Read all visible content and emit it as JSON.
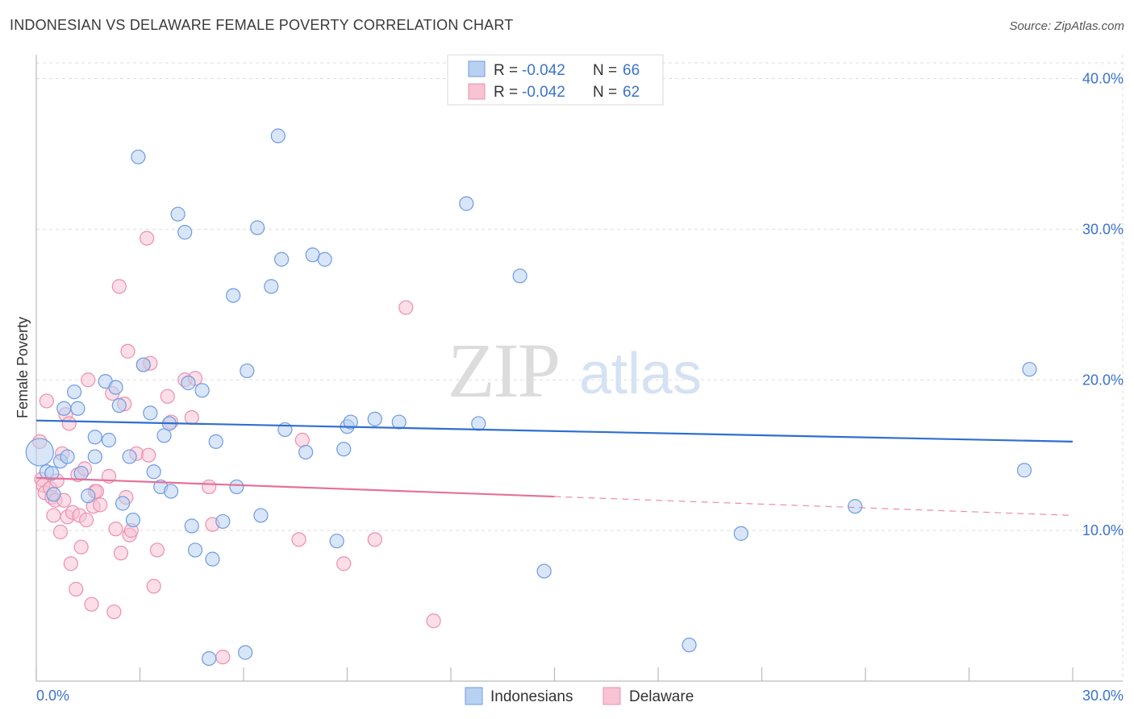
{
  "title": "INDONESIAN VS DELAWARE FEMALE POVERTY CORRELATION CHART",
  "source": "Source: ZipAtlas.com",
  "watermark": {
    "part1": "ZIP",
    "part2": "atlas"
  },
  "colors": {
    "blue_fill": "#b8d1f3",
    "blue_stroke": "#6f9be0",
    "blue_line": "#2e6fcf",
    "pink_fill": "#f8c3d3",
    "pink_stroke": "#ec8fae",
    "pink_line": "#e5709a",
    "grid": "#dedede",
    "axis_label": "#3b73c8"
  },
  "legend": {
    "rows": [
      {
        "r_label": "R =",
        "r_value": "-0.042",
        "n_label": "N =",
        "n_value": "66"
      },
      {
        "r_label": "R =",
        "r_value": "-0.042",
        "n_label": "N =",
        "n_value": "62"
      }
    ]
  },
  "chart_data": {
    "type": "scatter",
    "title": "INDONESIAN VS DELAWARE FEMALE POVERTY CORRELATION CHART",
    "xlabel": "",
    "ylabel": "Female Poverty",
    "xlim": [
      0,
      30
    ],
    "ylim": [
      0,
      40
    ],
    "x_tick_labels": [
      "0.0%",
      "30.0%"
    ],
    "y_tick_labels": [
      "10.0%",
      "20.0%",
      "30.0%",
      "40.0%"
    ],
    "y_ticks": [
      10,
      20,
      30,
      40
    ],
    "grid": true,
    "legend_position": "top-center",
    "series": [
      {
        "name": "Indonesians",
        "color": "#6f9be0",
        "r": -0.042,
        "n": 66,
        "trend": {
          "x": [
            0,
            30
          ],
          "y": [
            17.3,
            15.9
          ],
          "dashed_from": null
        },
        "points": [
          [
            0.1,
            15.2
          ],
          [
            0.3,
            13.9
          ],
          [
            0.45,
            13.8
          ],
          [
            0.5,
            12.4
          ],
          [
            0.7,
            14.6
          ],
          [
            0.9,
            14.9
          ],
          [
            0.8,
            18.1
          ],
          [
            1.2,
            18.1
          ],
          [
            1.3,
            13.8
          ],
          [
            1.1,
            19.2
          ],
          [
            1.5,
            12.3
          ],
          [
            1.7,
            14.9
          ],
          [
            1.7,
            16.2
          ],
          [
            2.0,
            19.9
          ],
          [
            2.1,
            16.0
          ],
          [
            2.3,
            19.5
          ],
          [
            2.4,
            18.3
          ],
          [
            2.5,
            11.8
          ],
          [
            2.7,
            14.9
          ],
          [
            2.8,
            10.7
          ],
          [
            2.95,
            34.8
          ],
          [
            3.1,
            21.0
          ],
          [
            3.3,
            17.8
          ],
          [
            3.4,
            13.9
          ],
          [
            3.6,
            12.9
          ],
          [
            3.7,
            16.3
          ],
          [
            3.85,
            17.1
          ],
          [
            3.9,
            12.6
          ],
          [
            4.1,
            31.0
          ],
          [
            4.3,
            29.8
          ],
          [
            4.4,
            19.8
          ],
          [
            4.5,
            10.3
          ],
          [
            4.6,
            8.7
          ],
          [
            4.8,
            19.3
          ],
          [
            5.0,
            1.5
          ],
          [
            5.1,
            8.1
          ],
          [
            5.2,
            15.9
          ],
          [
            5.4,
            10.6
          ],
          [
            5.7,
            25.6
          ],
          [
            5.8,
            12.9
          ],
          [
            6.05,
            1.9
          ],
          [
            6.1,
            20.6
          ],
          [
            6.4,
            30.1
          ],
          [
            6.5,
            11.0
          ],
          [
            6.8,
            26.2
          ],
          [
            7.0,
            36.2
          ],
          [
            7.1,
            28.0
          ],
          [
            7.2,
            16.7
          ],
          [
            7.8,
            15.2
          ],
          [
            8.0,
            28.3
          ],
          [
            8.35,
            28.0
          ],
          [
            8.7,
            9.3
          ],
          [
            8.9,
            15.4
          ],
          [
            9.0,
            16.9
          ],
          [
            9.1,
            17.2
          ],
          [
            9.8,
            17.4
          ],
          [
            10.5,
            17.2
          ],
          [
            12.45,
            31.7
          ],
          [
            12.8,
            17.1
          ],
          [
            14.0,
            26.9
          ],
          [
            14.7,
            7.3
          ],
          [
            18.9,
            2.4
          ],
          [
            20.4,
            9.8
          ],
          [
            23.7,
            11.6
          ],
          [
            28.6,
            14.0
          ],
          [
            28.75,
            20.7
          ]
        ]
      },
      {
        "name": "Delaware",
        "color": "#ec8fae",
        "r": -0.042,
        "n": 62,
        "trend": {
          "x": [
            0,
            30
          ],
          "y": [
            13.5,
            11.0
          ],
          "dashed_from": 15.0
        },
        "points": [
          [
            0.1,
            15.9
          ],
          [
            0.15,
            13.4
          ],
          [
            0.2,
            13.0
          ],
          [
            0.25,
            12.5
          ],
          [
            0.3,
            18.6
          ],
          [
            0.4,
            12.8
          ],
          [
            0.45,
            12.2
          ],
          [
            0.5,
            11.0
          ],
          [
            0.55,
            12.0
          ],
          [
            0.6,
            13.3
          ],
          [
            0.7,
            9.9
          ],
          [
            0.75,
            15.1
          ],
          [
            0.8,
            12.0
          ],
          [
            0.85,
            17.7
          ],
          [
            0.9,
            10.9
          ],
          [
            0.95,
            17.1
          ],
          [
            1.0,
            7.8
          ],
          [
            1.05,
            11.2
          ],
          [
            1.15,
            6.1
          ],
          [
            1.2,
            13.7
          ],
          [
            1.25,
            11.0
          ],
          [
            1.3,
            8.9
          ],
          [
            1.4,
            14.1
          ],
          [
            1.45,
            10.7
          ],
          [
            1.5,
            20.0
          ],
          [
            1.6,
            5.1
          ],
          [
            1.65,
            11.6
          ],
          [
            1.7,
            12.6
          ],
          [
            1.75,
            12.6
          ],
          [
            1.85,
            11.7
          ],
          [
            2.1,
            13.6
          ],
          [
            2.2,
            19.1
          ],
          [
            2.25,
            4.6
          ],
          [
            2.3,
            10.1
          ],
          [
            2.4,
            26.2
          ],
          [
            2.45,
            8.5
          ],
          [
            2.55,
            18.4
          ],
          [
            2.6,
            12.2
          ],
          [
            2.65,
            21.9
          ],
          [
            2.7,
            9.7
          ],
          [
            2.75,
            10.0
          ],
          [
            2.9,
            15.1
          ],
          [
            3.1,
            21.0
          ],
          [
            3.2,
            29.4
          ],
          [
            3.25,
            15.0
          ],
          [
            3.3,
            21.1
          ],
          [
            3.4,
            6.3
          ],
          [
            3.5,
            8.7
          ],
          [
            3.8,
            18.9
          ],
          [
            3.9,
            17.2
          ],
          [
            4.3,
            20.0
          ],
          [
            4.5,
            17.5
          ],
          [
            4.6,
            20.1
          ],
          [
            5.0,
            12.9
          ],
          [
            5.1,
            10.4
          ],
          [
            5.4,
            1.6
          ],
          [
            7.6,
            9.4
          ],
          [
            7.7,
            16.0
          ],
          [
            8.9,
            7.8
          ],
          [
            9.8,
            9.4
          ],
          [
            10.7,
            24.8
          ],
          [
            11.5,
            4.0
          ]
        ]
      }
    ]
  },
  "bottom_legend": [
    {
      "label": "Indonesians"
    },
    {
      "label": "Delaware"
    }
  ]
}
